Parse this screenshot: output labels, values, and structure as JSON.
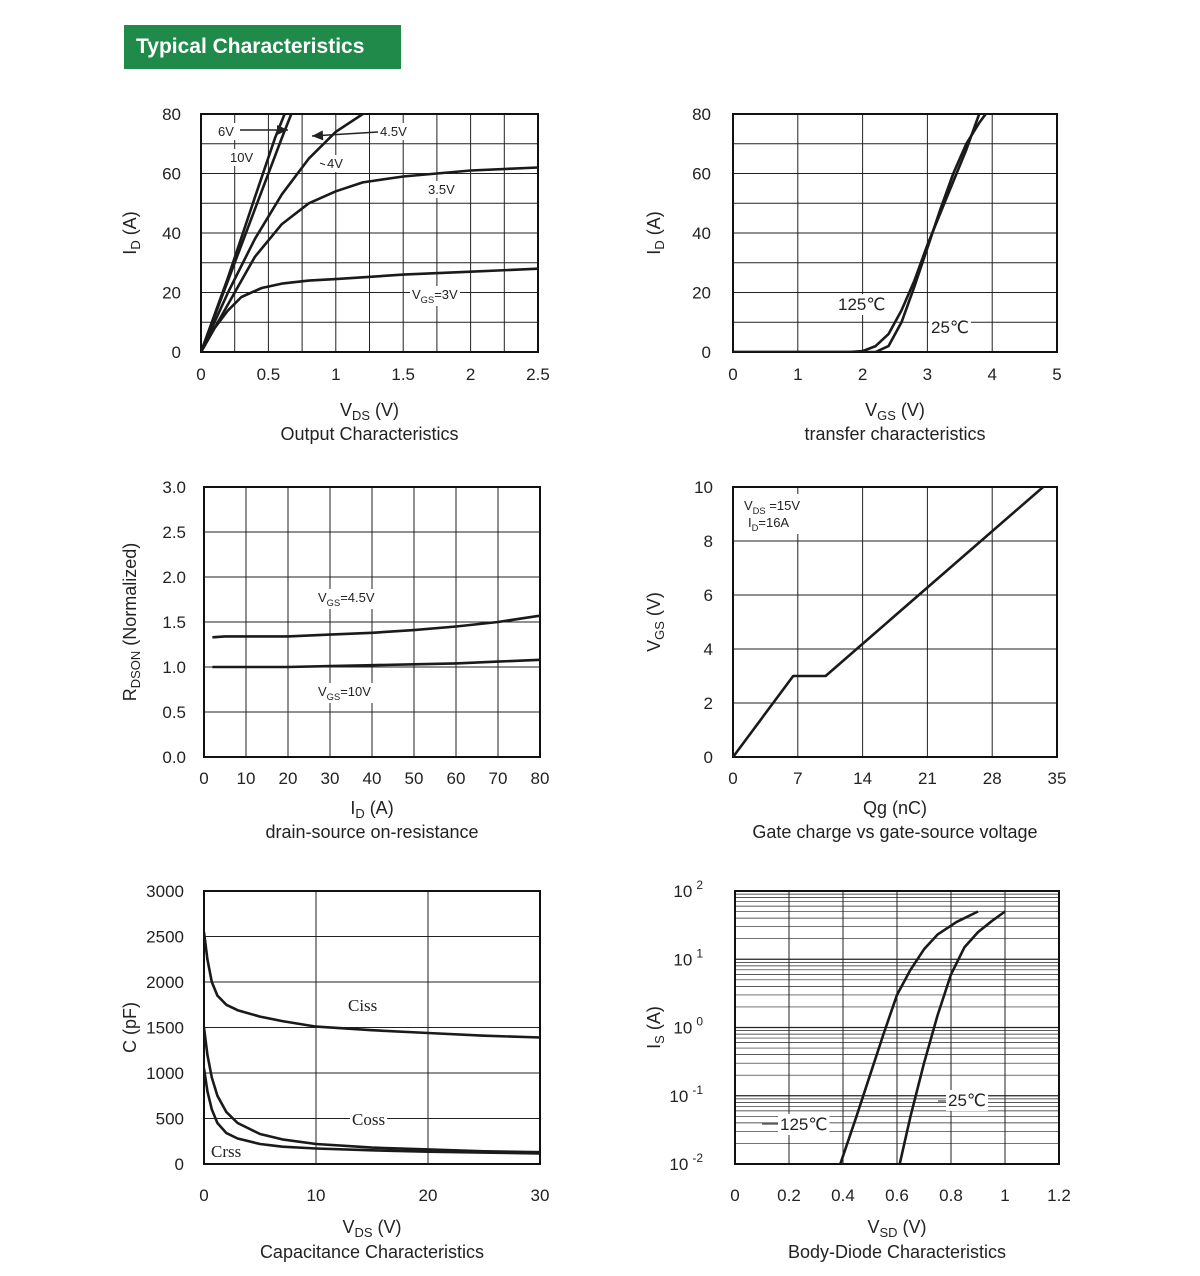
{
  "header": {
    "title": "Typical Characteristics"
  },
  "colors": {
    "header_bg": "#1f8a4a",
    "curve": "#1a1a1a",
    "grid": "#222222"
  },
  "chart_data": [
    {
      "id": "output",
      "type": "line",
      "caption": "Output Characteristics",
      "xlabel": {
        "main": "V",
        "sub": "DS",
        "post": " (V)"
      },
      "ylabel": {
        "main": "I",
        "sub": "D",
        "post": " (A)"
      },
      "xlim": [
        0,
        2.5
      ],
      "ylim": [
        0,
        80
      ],
      "xticks": [
        0,
        0.5,
        1,
        1.5,
        2,
        2.5
      ],
      "xtick_labels": [
        "0",
        "0.5",
        "1",
        "1.5",
        "2",
        "2.5"
      ],
      "yticks": [
        0,
        20,
        40,
        60,
        80
      ],
      "ytick_labels": [
        "0",
        "20",
        "40",
        "60",
        "80"
      ],
      "grid": true,
      "series": [
        {
          "name": "10V",
          "x": [
            0,
            0.2,
            0.4,
            0.55,
            0.62
          ],
          "y": [
            0,
            25,
            52,
            72,
            80
          ]
        },
        {
          "name": "6V",
          "x": [
            0,
            0.2,
            0.4,
            0.6,
            0.67
          ],
          "y": [
            0,
            24,
            48,
            72,
            80
          ]
        },
        {
          "name": "4.5V",
          "x": [
            0,
            0.2,
            0.4,
            0.6,
            0.8,
            1.0,
            1.2
          ],
          "y": [
            0,
            20,
            38,
            53,
            65,
            74,
            80
          ]
        },
        {
          "name": "4V",
          "x": [
            0,
            0.2,
            0.4,
            0.6,
            0.8,
            1.0,
            1.2,
            1.5
          ],
          "y": [
            0,
            16,
            32,
            43,
            50,
            54,
            57,
            59
          ]
        },
        {
          "name": "3.5V",
          "x": [
            1.5,
            2.0,
            2.5
          ],
          "y": [
            59,
            61,
            62
          ]
        },
        {
          "name": "VGS=3V",
          "x": [
            0,
            0.1,
            0.2,
            0.3,
            0.45,
            0.6,
            0.8,
            1.0,
            1.5,
            2.0,
            2.5
          ],
          "y": [
            0,
            8,
            14,
            18.5,
            21.5,
            23,
            24,
            24.5,
            26,
            27,
            28
          ]
        }
      ],
      "annotations": [
        {
          "text": "6V",
          "sub": "",
          "post": ""
        },
        {
          "text": "10V",
          "sub": "",
          "post": ""
        },
        {
          "text": "4.5V",
          "sub": "",
          "post": ""
        },
        {
          "text": "4V",
          "sub": "",
          "post": ""
        },
        {
          "text": "3.5V",
          "sub": "",
          "post": ""
        },
        {
          "text": "V",
          "sub": "GS",
          "post": "=3V"
        }
      ]
    },
    {
      "id": "transfer",
      "type": "line",
      "caption": "transfer characteristics",
      "xlabel": {
        "main": "V",
        "sub": "GS",
        "post": " (V)"
      },
      "ylabel": {
        "main": "I",
        "sub": "D",
        "post": " (A)"
      },
      "xlim": [
        0,
        5
      ],
      "ylim": [
        0,
        80
      ],
      "xticks": [
        0,
        1,
        2,
        3,
        4,
        5
      ],
      "xtick_labels": [
        "0",
        "1",
        "2",
        "3",
        "4",
        "5"
      ],
      "yticks": [
        0,
        20,
        40,
        60,
        80
      ],
      "ytick_labels": [
        "0",
        "20",
        "40",
        "60",
        "80"
      ],
      "grid": true,
      "series": [
        {
          "name": "125℃",
          "x": [
            0,
            1.8,
            2.0,
            2.2,
            2.4,
            2.6,
            2.8,
            3.0,
            3.3,
            3.6,
            3.8
          ],
          "y": [
            0,
            0,
            0.3,
            2,
            6,
            14,
            24,
            36,
            52,
            68,
            80
          ]
        },
        {
          "name": "25℃",
          "x": [
            0,
            2.2,
            2.4,
            2.6,
            2.8,
            3.0,
            3.2,
            3.4,
            3.6,
            3.8,
            3.9
          ],
          "y": [
            0,
            0,
            2,
            10,
            22,
            35,
            48,
            60,
            70,
            77,
            80
          ]
        }
      ],
      "annotations": [
        {
          "text": "125℃",
          "sub": "",
          "post": ""
        },
        {
          "text": "25℃",
          "sub": "",
          "post": ""
        }
      ]
    },
    {
      "id": "rdson",
      "type": "line",
      "caption": "drain-source on-resistance",
      "xlabel": {
        "main": "I",
        "sub": "D",
        "post": "  (A)"
      },
      "ylabel": {
        "main": "R",
        "sub": "DSON",
        "post": " (Normalized)"
      },
      "xlim": [
        0,
        80
      ],
      "ylim": [
        0,
        3
      ],
      "xticks": [
        0,
        10,
        20,
        30,
        40,
        50,
        60,
        70,
        80
      ],
      "xtick_labels": [
        "0",
        "10",
        "20",
        "30",
        "40",
        "50",
        "60",
        "70",
        "80"
      ],
      "yticks": [
        0,
        0.5,
        1,
        1.5,
        2,
        2.5,
        3
      ],
      "ytick_labels": [
        "0.0",
        "0.5",
        "1.0",
        "1.5",
        "2.0",
        "2.5",
        "3.0"
      ],
      "grid": true,
      "series": [
        {
          "name": "VGS=4.5V",
          "x": [
            2,
            5,
            10,
            20,
            30,
            40,
            50,
            60,
            70,
            80
          ],
          "y": [
            1.33,
            1.34,
            1.34,
            1.34,
            1.36,
            1.38,
            1.41,
            1.45,
            1.5,
            1.57
          ]
        },
        {
          "name": "VGS=10V",
          "x": [
            2,
            10,
            20,
            30,
            40,
            50,
            60,
            70,
            80
          ],
          "y": [
            1.0,
            1.0,
            1.0,
            1.01,
            1.02,
            1.03,
            1.04,
            1.06,
            1.08
          ]
        }
      ],
      "annotations": [
        {
          "text": "V",
          "sub": "GS",
          "post": "=4.5V"
        },
        {
          "text": "V",
          "sub": "GS",
          "post": "=10V"
        }
      ]
    },
    {
      "id": "gatecharge",
      "type": "line",
      "caption": "Gate charge vs gate-source voltage",
      "xlabel": {
        "main": "Qg  (nC)",
        "sub": "",
        "post": ""
      },
      "ylabel": {
        "main": "V",
        "sub": "GS",
        "post": " (V)"
      },
      "xlim": [
        0,
        35
      ],
      "ylim": [
        0,
        10
      ],
      "xticks": [
        0,
        7,
        14,
        21,
        28,
        35
      ],
      "xtick_labels": [
        "0",
        "7",
        "14",
        "21",
        "28",
        "35"
      ],
      "yticks": [
        0,
        2,
        4,
        6,
        8,
        10
      ],
      "ytick_labels": [
        "0",
        "2",
        "4",
        "6",
        "8",
        "10"
      ],
      "grid": true,
      "series": [
        {
          "name": "",
          "x": [
            0,
            6.5,
            10,
            33.5
          ],
          "y": [
            0,
            3,
            3,
            10
          ]
        }
      ],
      "annotations": [
        {
          "text": "V",
          "sub": "DS",
          "post": " =15V"
        },
        {
          "text": "I",
          "sub": "D",
          "post": "=16A"
        }
      ]
    },
    {
      "id": "capacitance",
      "type": "line",
      "caption": "Capacitance Characteristics",
      "xlabel": {
        "main": "V",
        "sub": "DS",
        "post": " (V)"
      },
      "ylabel": {
        "main": "C (pF)",
        "sub": "",
        "post": ""
      },
      "xlim": [
        0,
        30
      ],
      "ylim": [
        0,
        3000
      ],
      "xticks": [
        0,
        10,
        20,
        30
      ],
      "xtick_labels": [
        "0",
        "10",
        "20",
        "30"
      ],
      "yticks": [
        0,
        500,
        1000,
        1500,
        2000,
        2500,
        3000
      ],
      "ytick_labels": [
        "0",
        "500",
        "1000",
        "1500",
        "2000",
        "2500",
        "3000"
      ],
      "grid": true,
      "series": [
        {
          "name": "Ciss",
          "x": [
            0,
            0.3,
            0.7,
            1.2,
            2,
            3,
            5,
            7,
            10,
            15,
            20,
            25,
            30
          ],
          "y": [
            2550,
            2250,
            2000,
            1850,
            1750,
            1690,
            1620,
            1570,
            1510,
            1470,
            1440,
            1410,
            1390
          ]
        },
        {
          "name": "Coss",
          "x": [
            0,
            0.3,
            0.7,
            1.2,
            2,
            3,
            5,
            7,
            10,
            15,
            20,
            25,
            30
          ],
          "y": [
            1500,
            1200,
            950,
            750,
            570,
            450,
            330,
            270,
            220,
            180,
            160,
            140,
            130
          ]
        },
        {
          "name": "Crss",
          "x": [
            0,
            0.3,
            0.7,
            1.2,
            2,
            3,
            5,
            7,
            10,
            15,
            20,
            25,
            30
          ],
          "y": [
            1050,
            800,
            600,
            450,
            340,
            280,
            220,
            190,
            170,
            150,
            135,
            125,
            115
          ]
        }
      ],
      "annotations": [
        {
          "text": "Ciss",
          "sub": "",
          "post": ""
        },
        {
          "text": "Coss",
          "sub": "",
          "post": ""
        },
        {
          "text": "Crss",
          "sub": "",
          "post": ""
        }
      ]
    },
    {
      "id": "bodydiode",
      "type": "line",
      "caption": "Body-Diode Characteristics",
      "xlabel": {
        "main": "V",
        "sub": "SD",
        "post": " (V)"
      },
      "ylabel": {
        "main": "I",
        "sub": "S",
        "post": " (A)"
      },
      "xlim": [
        0,
        1.2
      ],
      "ylim": [
        0.01,
        100
      ],
      "yscale": "log",
      "xticks": [
        0,
        0.2,
        0.4,
        0.6,
        0.8,
        1,
        1.2
      ],
      "xtick_labels": [
        "0",
        "0.2",
        "0.4",
        "0.6",
        "0.8",
        "1",
        "1.2"
      ],
      "yticks": [
        0.01,
        0.1,
        1,
        10,
        100
      ],
      "ytick_labels": [
        {
          "base": "10",
          "exp": "-2"
        },
        {
          "base": "10",
          "exp": "-1"
        },
        {
          "base": "10",
          "exp": "0"
        },
        {
          "base": "10",
          "exp": "1"
        },
        {
          "base": "10",
          "exp": "2"
        }
      ],
      "grid": true,
      "series": [
        {
          "name": "125℃",
          "x": [
            0.39,
            0.45,
            0.5,
            0.55,
            0.6,
            0.65,
            0.7,
            0.75,
            0.82,
            0.9
          ],
          "y": [
            0.01,
            0.05,
            0.2,
            0.8,
            3,
            7,
            14,
            23,
            35,
            50
          ]
        },
        {
          "name": "25℃",
          "x": [
            0.61,
            0.65,
            0.7,
            0.75,
            0.8,
            0.85,
            0.9,
            0.95,
            1.0
          ],
          "y": [
            0.01,
            0.05,
            0.3,
            1.5,
            6,
            15,
            25,
            36,
            50
          ]
        }
      ],
      "annotations": [
        {
          "text": "125℃",
          "sub": "",
          "post": ""
        },
        {
          "text": "25℃",
          "sub": "",
          "post": ""
        }
      ]
    }
  ]
}
